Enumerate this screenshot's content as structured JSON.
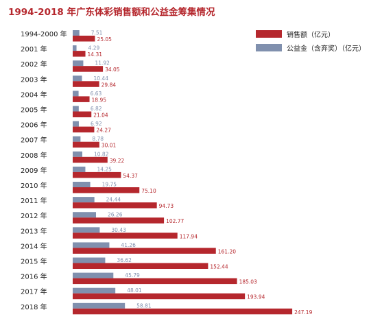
{
  "chart_data": {
    "type": "bar",
    "orientation": "horizontal",
    "title": "1994-2018 年广东体彩销售额和公益金筹集情况",
    "categories": [
      "1994-2000 年",
      "2001 年",
      "2002 年",
      "2003 年",
      "2004 年",
      "2005 年",
      "2006 年",
      "2007 年",
      "2008 年",
      "2009 年",
      "2010 年",
      "2011 年",
      "2012 年",
      "2013 年",
      "2014 年",
      "2015 年",
      "2016 年",
      "2017 年",
      "2018 年"
    ],
    "series": [
      {
        "name": "销售额（亿元）",
        "color": "#b5272d",
        "values": [
          25.05,
          14.31,
          34.05,
          29.84,
          18.95,
          21.04,
          24.27,
          30.01,
          39.22,
          54.37,
          75.1,
          94.73,
          102.77,
          117.94,
          161.2,
          152.44,
          185.03,
          193.94,
          247.19
        ],
        "labels": [
          "25.05",
          "14.31",
          "34.05",
          "29.84",
          "18.95",
          "21.04",
          "24.27",
          "30.01",
          "39.22",
          "54.37",
          "75.10",
          "94.73",
          "102.77",
          "117.94",
          "161.20",
          "152.44",
          "185.03",
          "193.94",
          "247.19"
        ]
      },
      {
        "name": "公益金（含弃奖）（亿元）",
        "color": "#8090ae",
        "values": [
          7.51,
          4.29,
          11.92,
          10.44,
          6.63,
          6.82,
          6.92,
          8.78,
          10.82,
          14.25,
          19.75,
          24.44,
          26.26,
          30.43,
          41.26,
          36.62,
          45.79,
          48.01,
          58.81
        ],
        "labels": [
          "7.51",
          "4.29",
          "11.92",
          "10.44",
          "6.63",
          "6.82",
          "6.92",
          "8.78",
          "10.82",
          "14.25",
          "19.75",
          "24.44",
          "26.26",
          "30.43",
          "41.26",
          "36.62",
          "45.79",
          "48.01",
          "58.81"
        ]
      }
    ],
    "legend_position": "top-right",
    "grid": false
  }
}
